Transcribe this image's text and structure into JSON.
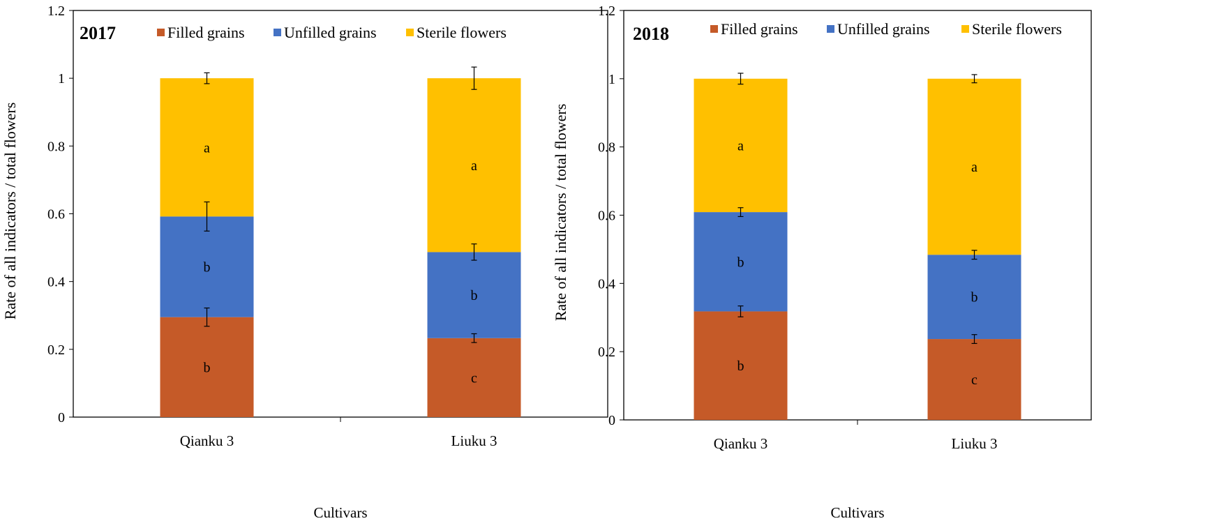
{
  "chart_data": [
    {
      "type": "bar",
      "stacked": true,
      "title": "2017",
      "xlabel": "Cultivars",
      "ylabel": "Rate of all indicators / total flowers",
      "ylim": [
        0,
        1.2
      ],
      "yticks": [
        "0",
        "0.2",
        "0.4",
        "0.6",
        "0.8",
        "1",
        "1.2"
      ],
      "legend_position": "top",
      "categories": [
        "Qianku 3",
        "Liuku 3"
      ],
      "series": [
        {
          "name": "Filled grains",
          "color": "#C55A28",
          "values": [
            0.295,
            0.233
          ],
          "errors": [
            0.027,
            0.013
          ],
          "letters": [
            "b",
            "c"
          ]
        },
        {
          "name": "Unfilled grains",
          "color": "#4472C4",
          "values": [
            0.297,
            0.254
          ],
          "errors": [
            0.043,
            0.024
          ],
          "letters": [
            "b",
            "b"
          ]
        },
        {
          "name": "Sterile flowers",
          "color": "#FFC000",
          "values": [
            0.408,
            0.513
          ],
          "errors": [
            0.016,
            0.033
          ],
          "letters": [
            "a",
            "a"
          ]
        }
      ]
    },
    {
      "type": "bar",
      "stacked": true,
      "title": "2018",
      "xlabel": "Cultivars",
      "ylabel": "Rate of all indicators / total flowers",
      "ylim": [
        0,
        1.2
      ],
      "yticks": [
        "0",
        "0.2",
        "0.4",
        "0.6",
        "0.8",
        "1",
        "1.2"
      ],
      "legend_position": "top",
      "categories": [
        "Qianku 3",
        "Liuku 3"
      ],
      "series": [
        {
          "name": "Filled grains",
          "color": "#C55A28",
          "values": [
            0.318,
            0.237
          ],
          "errors": [
            0.016,
            0.013
          ],
          "letters": [
            "b",
            "c"
          ]
        },
        {
          "name": "Unfilled grains",
          "color": "#4472C4",
          "values": [
            0.291,
            0.247
          ],
          "errors": [
            0.013,
            0.013
          ],
          "letters": [
            "b",
            "b"
          ]
        },
        {
          "name": "Sterile flowers",
          "color": "#FFC000",
          "values": [
            0.391,
            0.516
          ],
          "errors": [
            0.016,
            0.012
          ],
          "letters": [
            "a",
            "a"
          ]
        }
      ]
    }
  ]
}
